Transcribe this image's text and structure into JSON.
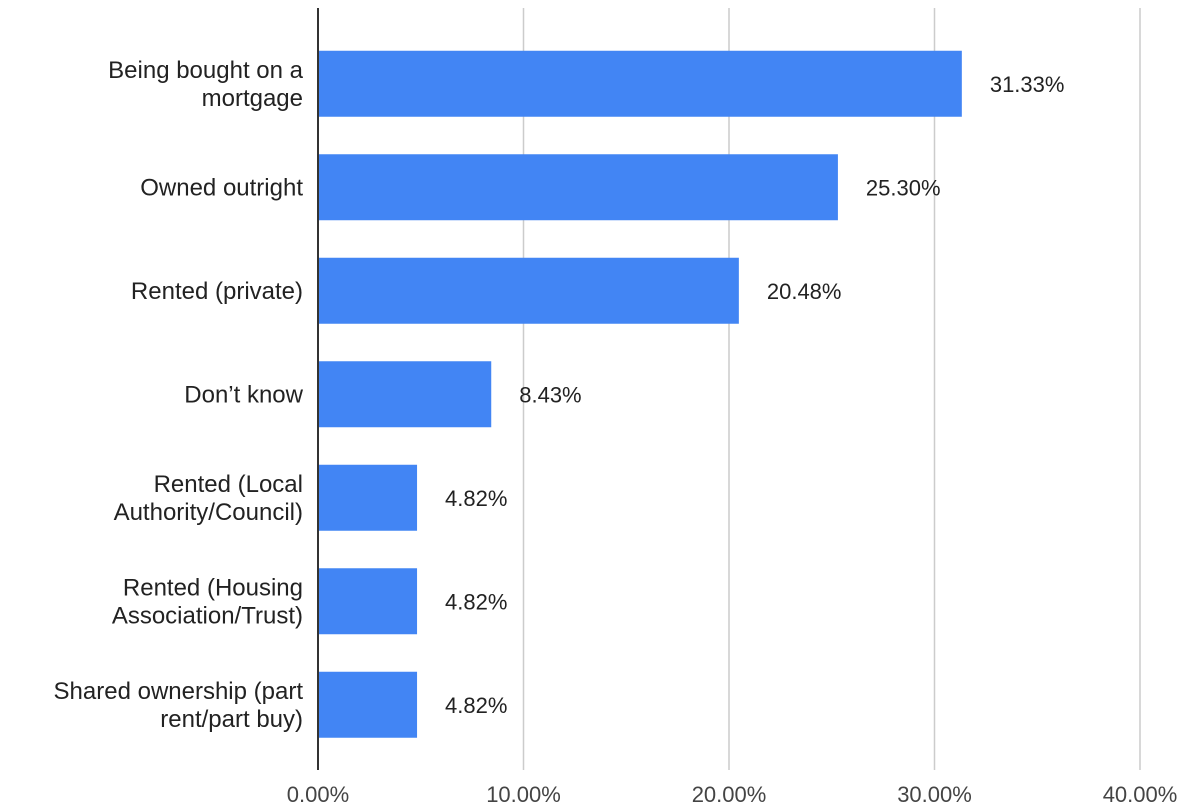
{
  "chart_data": {
    "type": "bar",
    "orientation": "horizontal",
    "categories": [
      [
        "Being bought on a",
        "mortgage"
      ],
      [
        "Owned outright"
      ],
      [
        "Rented (private)"
      ],
      [
        "Don’t know"
      ],
      [
        "Rented (Local",
        "Authority/Council)"
      ],
      [
        "Rented (Housing",
        "Association/Trust)"
      ],
      [
        "Shared ownership (part",
        "rent/part buy)"
      ]
    ],
    "values": [
      31.33,
      25.3,
      20.48,
      8.43,
      4.82,
      4.82,
      4.82
    ],
    "data_labels": [
      "31.33%",
      "25.30%",
      "20.48%",
      "8.43%",
      "4.82%",
      "4.82%",
      "4.82%"
    ],
    "x_ticks": [
      0,
      10,
      20,
      30,
      40
    ],
    "x_tick_labels": [
      "0.00%",
      "10.00%",
      "20.00%",
      "30.00%",
      "40.00%"
    ],
    "xlim": [
      0,
      40
    ],
    "grid": true,
    "legend": "none",
    "bar_color": "#4285F4",
    "grid_color": "#CCCCCC",
    "axis_color": "#333333"
  }
}
